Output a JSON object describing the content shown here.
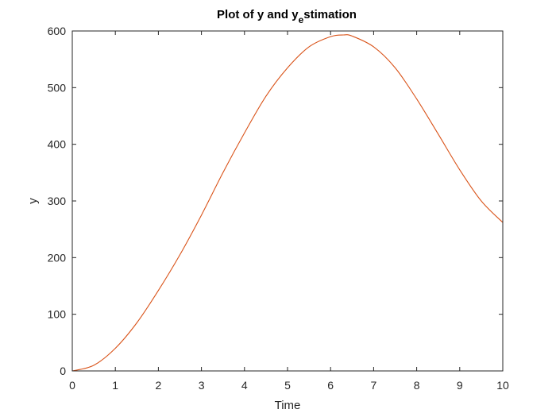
{
  "chart_data": {
    "type": "line",
    "title": "Plot of y and y",
    "title_subscript": "e",
    "title_suffix": "stimation",
    "xlabel": "Time",
    "ylabel": "y",
    "xlim": [
      0,
      10
    ],
    "ylim": [
      0,
      600
    ],
    "xticks": [
      0,
      1,
      2,
      3,
      4,
      5,
      6,
      7,
      8,
      9,
      10
    ],
    "yticks": [
      0,
      100,
      200,
      300,
      400,
      500,
      600
    ],
    "grid": false,
    "box": true,
    "series": [
      {
        "color": "#d95319",
        "x": [
          0,
          0.5,
          1,
          1.5,
          2,
          2.5,
          3,
          3.5,
          4,
          4.5,
          5,
          5.5,
          6,
          6.3,
          6.5,
          7,
          7.5,
          8,
          8.5,
          9,
          9.5,
          10
        ],
        "y": [
          0,
          10,
          40,
          85,
          142,
          205,
          275,
          350,
          420,
          485,
          535,
          572,
          590,
          593,
          591,
          572,
          535,
          480,
          418,
          355,
          300,
          262
        ]
      }
    ]
  }
}
